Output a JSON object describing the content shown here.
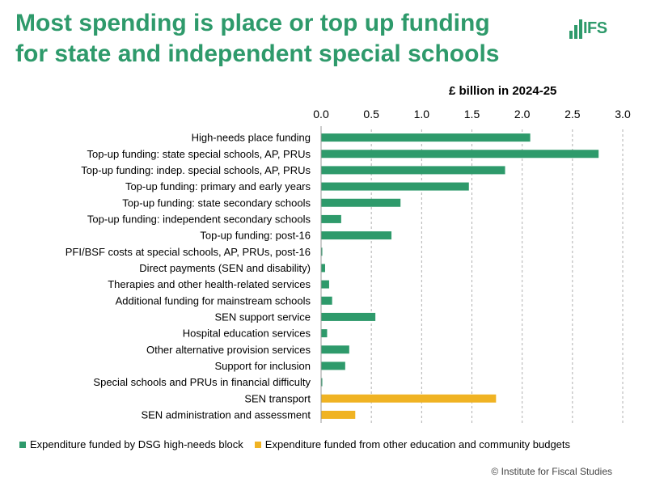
{
  "header": {
    "title_line1": "Most spending is place or top up funding",
    "title_line2": "for state and independent special schools",
    "logo_text": "IFS"
  },
  "colors": {
    "brand_green": "#2e9a6b",
    "series_green": "#2e9a6b",
    "series_gold": "#f0b323",
    "grid": "#b0b0b0"
  },
  "chart_data": {
    "type": "bar",
    "orientation": "horizontal",
    "title": "",
    "unit_label": "£ billion in 2024-25",
    "xlim": [
      0,
      3.0
    ],
    "ticks": [
      "0.0",
      "0.5",
      "1.0",
      "1.5",
      "2.0",
      "2.5",
      "3.0"
    ],
    "tick_values": [
      0,
      0.5,
      1.0,
      1.5,
      2.0,
      2.5,
      3.0
    ],
    "grid": true,
    "legend_position": "bottom",
    "categories": [
      "High-needs place funding",
      "Top-up funding: state special schools, AP, PRUs",
      "Top-up funding: indep. special schools, AP, PRUs",
      "Top-up funding: primary and early years",
      "Top-up funding: state secondary schools",
      "Top-up funding: independent secondary schools",
      "Top-up funding: post-16",
      "PFI/BSF costs at special schools, AP, PRUs, post-16",
      "Direct payments (SEN and disability)",
      "Therapies and other health-related services",
      "Additional funding for mainstream schools",
      "SEN support service",
      "Hospital education services",
      "Other alternative provision services",
      "Support for inclusion",
      "Special schools and PRUs in financial difficulty",
      "SEN transport",
      "SEN administration and assessment"
    ],
    "values": [
      2.08,
      2.76,
      1.83,
      1.47,
      0.79,
      0.2,
      0.7,
      0.01,
      0.04,
      0.08,
      0.11,
      0.54,
      0.06,
      0.28,
      0.24,
      0.01,
      1.74,
      0.34
    ],
    "series_index": [
      0,
      0,
      0,
      0,
      0,
      0,
      0,
      0,
      0,
      0,
      0,
      0,
      0,
      0,
      0,
      0,
      1,
      1
    ],
    "series": [
      {
        "name": "Expenditure funded by DSG high-needs block",
        "color": "#2e9a6b"
      },
      {
        "name": "Expenditure funded from other education and community budgets",
        "color": "#f0b323"
      }
    ]
  },
  "footer": {
    "copyright": "© Institute for Fiscal Studies"
  }
}
